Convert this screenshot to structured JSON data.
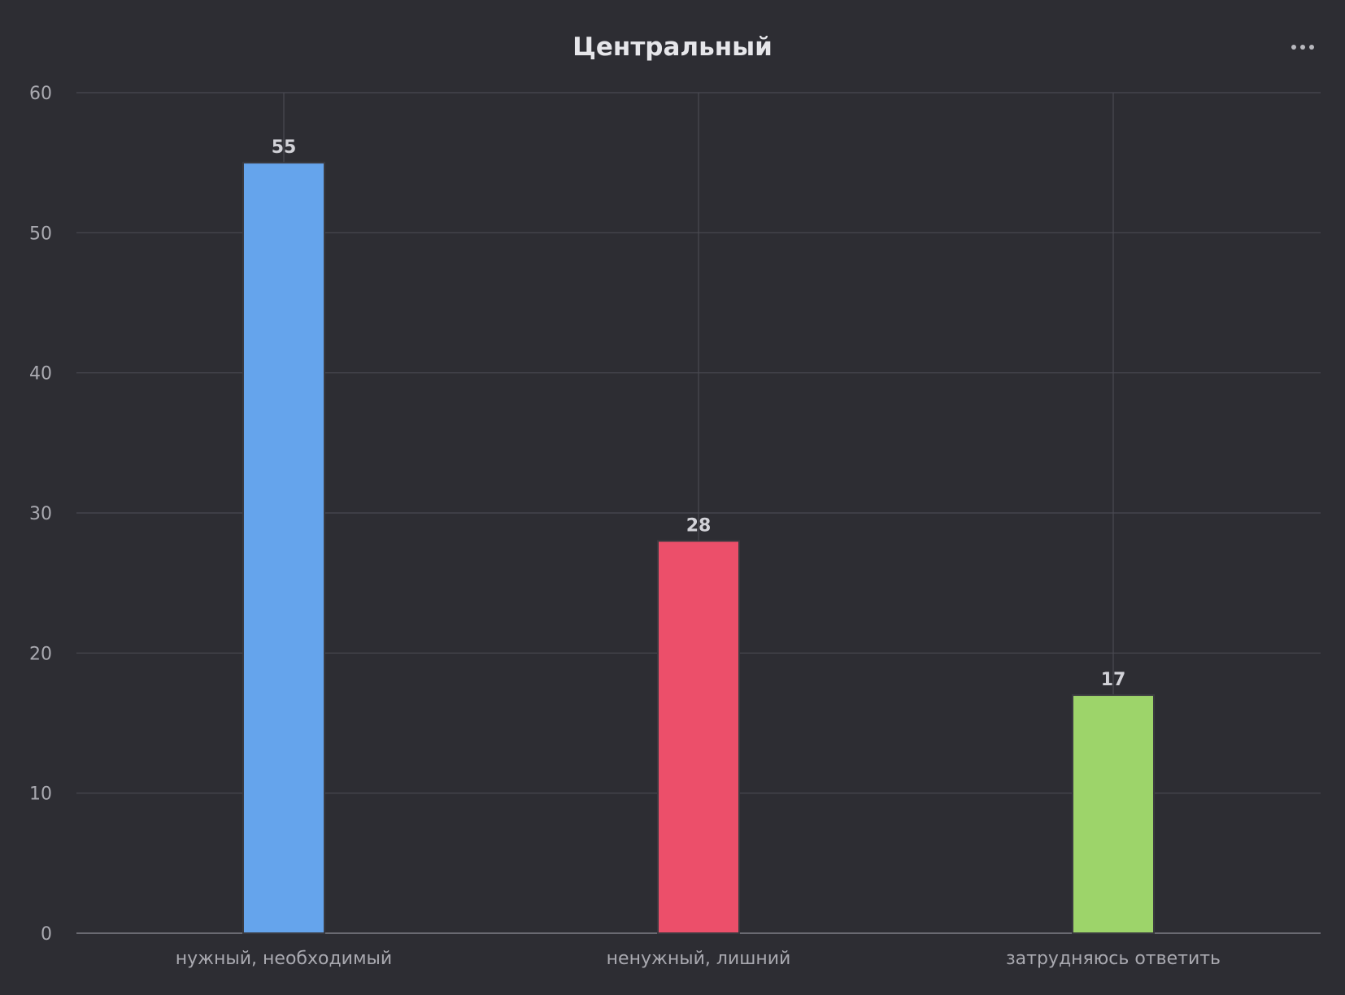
{
  "chart_data": {
    "type": "bar",
    "title": "Центральный",
    "categories": [
      "нужный, необходимый",
      "ненужный, лишний",
      "затрудняюсь ответить"
    ],
    "values": [
      55,
      28,
      17
    ],
    "bar_colors": [
      "#65a4ec",
      "#ec4f6a",
      "#9dd46a"
    ],
    "ylim": [
      0,
      60
    ],
    "yticks": [
      0,
      10,
      20,
      30,
      40,
      50,
      60
    ],
    "xlabel": "",
    "ylabel": "",
    "grid": true,
    "data_labels": true
  },
  "menu": {
    "icon": "more-horizontal-icon"
  },
  "theme": {
    "background": "#2d2d33",
    "grid_color": "#4a4a52",
    "axis_color": "#6a6a72"
  }
}
